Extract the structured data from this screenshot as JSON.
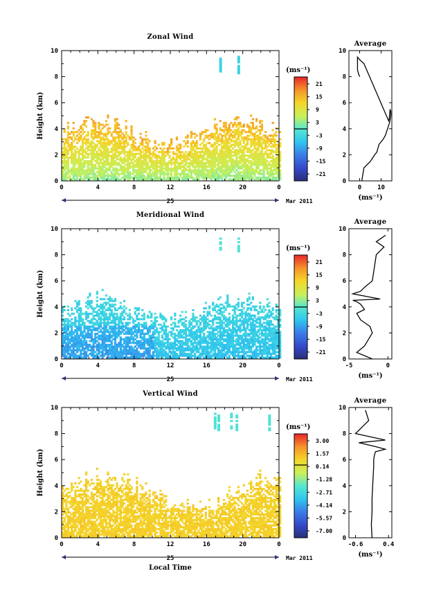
{
  "chart_data": [
    {
      "type": "heatmap",
      "title": "Zonal Wind",
      "ylabel": "Height (km)",
      "xlabel": "",
      "xticks": [
        "0",
        "4",
        "8",
        "12",
        "16",
        "20",
        "0"
      ],
      "yticks": [
        "0",
        "2",
        "4",
        "6",
        "8",
        "10"
      ],
      "xlim": [
        0,
        24
      ],
      "ylim": [
        0,
        10
      ],
      "date_label": "25",
      "month_label": "Mar 2011",
      "colorbar": {
        "unit": "(ms⁻¹)",
        "labels": [
          "21",
          "15",
          "9",
          "3",
          "-3",
          "-9",
          "-15",
          "-21"
        ],
        "min": -24,
        "max": 24
      },
      "profile": {
        "title": "Average",
        "xticks": [
          "0",
          "10"
        ],
        "xlim": [
          -5,
          15
        ],
        "yticks": [
          "0",
          "2",
          "4",
          "6",
          "8",
          "10"
        ],
        "xlabel": "(ms⁻¹)",
        "x": [
          1,
          1.5,
          2,
          5,
          7,
          8,
          8.5,
          9,
          10,
          11,
          12,
          13,
          14,
          14.5,
          14.5,
          14.2,
          14,
          13.8,
          13.5,
          2,
          0,
          -1,
          -1,
          -0.5,
          0
        ],
        "y": [
          0,
          0.5,
          1,
          1.5,
          2,
          2.2,
          2.5,
          2.8,
          3,
          3.2,
          3.5,
          4,
          4.5,
          5,
          5.3,
          5.5,
          5.2,
          4.8,
          4.6,
          9,
          9.3,
          9.5,
          8.5,
          8.2,
          8
        ]
      }
    },
    {
      "type": "heatmap",
      "title": "Meridional Wind",
      "ylabel": "Height (km)",
      "xlabel": "",
      "xticks": [
        "0",
        "4",
        "8",
        "12",
        "16",
        "20",
        "0"
      ],
      "yticks": [
        "0",
        "2",
        "4",
        "6",
        "8",
        "10"
      ],
      "xlim": [
        0,
        24
      ],
      "ylim": [
        0,
        10
      ],
      "date_label": "25",
      "month_label": "Mar 2011",
      "colorbar": {
        "unit": "(ms⁻¹)",
        "labels": [
          "21",
          "15",
          "9",
          "3",
          "-3",
          "-9",
          "-15",
          "-21"
        ],
        "min": -24,
        "max": 24
      },
      "profile": {
        "title": "Average",
        "xticks": [
          "-5",
          "0"
        ],
        "xlim": [
          -5,
          0.5
        ],
        "yticks": [
          "0",
          "2",
          "4",
          "6",
          "8",
          "10"
        ],
        "xlabel": "(ms⁻¹)",
        "x": [
          -2,
          -4,
          -3,
          -2.5,
          -2,
          -2.3,
          -3.5,
          -4,
          -3,
          -3.5,
          -4,
          -4.5,
          -1,
          -4.5,
          -3.5,
          -3,
          -2,
          -1.5,
          -0.5,
          -1.5,
          -0.3
        ],
        "y": [
          0,
          0.5,
          1,
          1.5,
          2,
          2.5,
          3,
          3.5,
          3.8,
          4.2,
          4.4,
          4.5,
          4.6,
          5,
          5.2,
          5.5,
          6,
          8,
          8.6,
          9,
          9.5
        ]
      }
    },
    {
      "type": "heatmap",
      "title": "Vertical Wind",
      "ylabel": "Height (km)",
      "xlabel": "Local Time",
      "xticks": [
        "0",
        "4",
        "8",
        "12",
        "16",
        "20",
        "0"
      ],
      "yticks": [
        "0",
        "2",
        "4",
        "6",
        "8",
        "10"
      ],
      "xlim": [
        0,
        24
      ],
      "ylim": [
        0,
        10
      ],
      "date_label": "25",
      "month_label": "Mar 2011",
      "colorbar": {
        "unit": "(ms⁻¹)",
        "labels": [
          "3.00",
          "1.57",
          "0.14",
          "-1.28",
          "-2.71",
          "-4.14",
          "-5.57",
          "-7.00"
        ],
        "min": -7.0,
        "max": 3.0
      },
      "profile": {
        "title": "Average",
        "xticks": [
          "-0.6",
          "0.4"
        ],
        "xlim": [
          -0.8,
          0.5
        ],
        "yticks": [
          "0",
          "2",
          "4",
          "6",
          "8",
          "10"
        ],
        "xlabel": "(ms⁻¹)",
        "x": [
          -0.1,
          -0.12,
          -0.1,
          -0.1,
          -0.08,
          -0.06,
          -0.05,
          -0.05,
          -0.03,
          0,
          0.3,
          0,
          -0.5,
          0.3,
          -0.6,
          -0.4,
          -0.2,
          -0.3
        ],
        "y": [
          0,
          1,
          2,
          3,
          4,
          5,
          5.5,
          6,
          6.3,
          6.6,
          6.8,
          7,
          7.3,
          7.5,
          8,
          8.5,
          9,
          9.8
        ]
      }
    }
  ]
}
